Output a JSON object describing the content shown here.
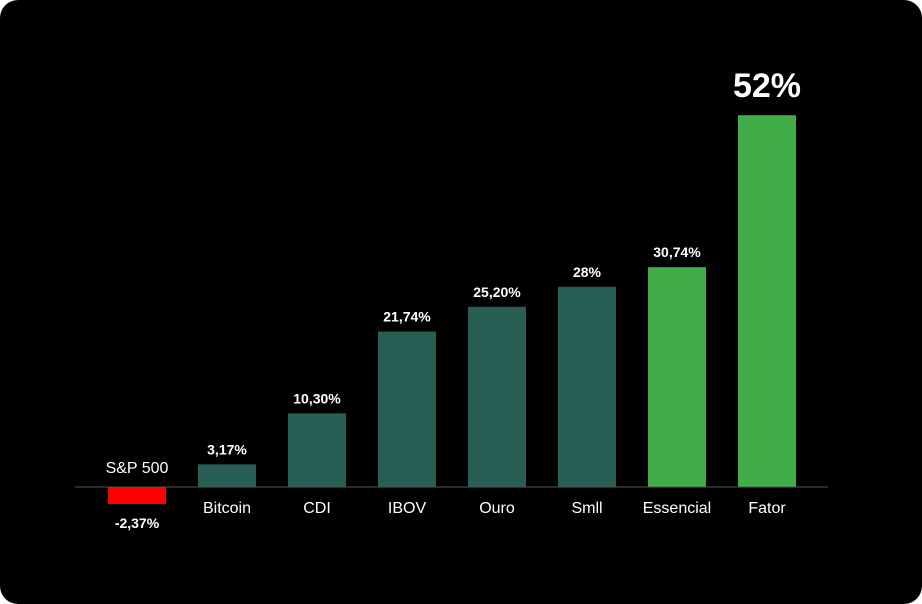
{
  "chart_data": {
    "type": "bar",
    "categories": [
      "S&P 500",
      "Bitcoin",
      "CDI",
      "IBOV",
      "Ouro",
      "Smll",
      "Essencial",
      "Fator"
    ],
    "values": [
      -2.37,
      3.17,
      10.3,
      21.74,
      25.2,
      28,
      30.74,
      52
    ],
    "value_labels": [
      "-2,37%",
      "3,17%",
      "10,30%",
      "21,74%",
      "25,20%",
      "28%",
      "30,74%",
      "52%"
    ],
    "colors": [
      "#ff0000",
      "#275f55",
      "#275f55",
      "#275f55",
      "#275f55",
      "#275f55",
      "#40ad48",
      "#40ad48"
    ],
    "highlight": "Fator",
    "title": "",
    "xlabel": "",
    "ylabel": "",
    "grid": false,
    "legend": "none"
  },
  "colors": {
    "background": "#000000",
    "axis": "#555555",
    "text": "#ffffff"
  }
}
